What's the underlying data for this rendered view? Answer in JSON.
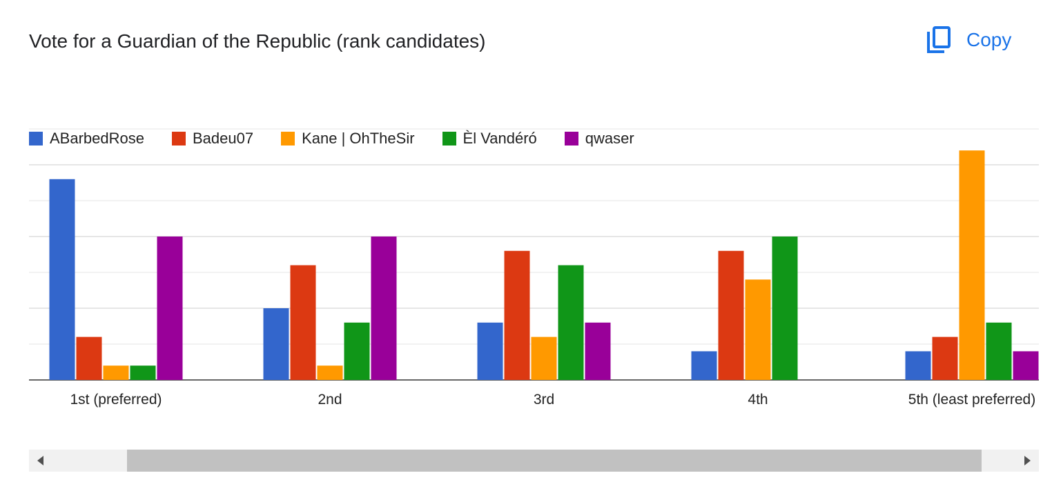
{
  "title": "Vote for a Guardian of the Republic (rank candidates)",
  "copy_label": "Copy",
  "chart_data": {
    "type": "bar",
    "title": "Vote for a Guardian of the Republic (rank candidates)",
    "categories": [
      "1st (preferred)",
      "2nd",
      "3rd",
      "4th",
      "5th (least preferred)"
    ],
    "series": [
      {
        "name": "ABarbedRose",
        "color": "#3366cc",
        "values": [
          14,
          5,
          4,
          2,
          2
        ]
      },
      {
        "name": "Badeu07",
        "color": "#dc3912",
        "values": [
          3,
          8,
          9,
          9,
          3
        ]
      },
      {
        "name": "Kane | OhTheSir",
        "color": "#ff9900",
        "values": [
          1,
          1,
          3,
          7,
          16
        ]
      },
      {
        "name": "Èl Vandéró",
        "color": "#109618",
        "values": [
          1,
          4,
          8,
          10,
          4
        ]
      },
      {
        "name": "qwaser",
        "color": "#990099",
        "values": [
          10,
          10,
          4,
          0,
          2
        ]
      }
    ],
    "ylim": [
      0,
      17.5
    ],
    "grid": true,
    "legend": "top-left"
  }
}
